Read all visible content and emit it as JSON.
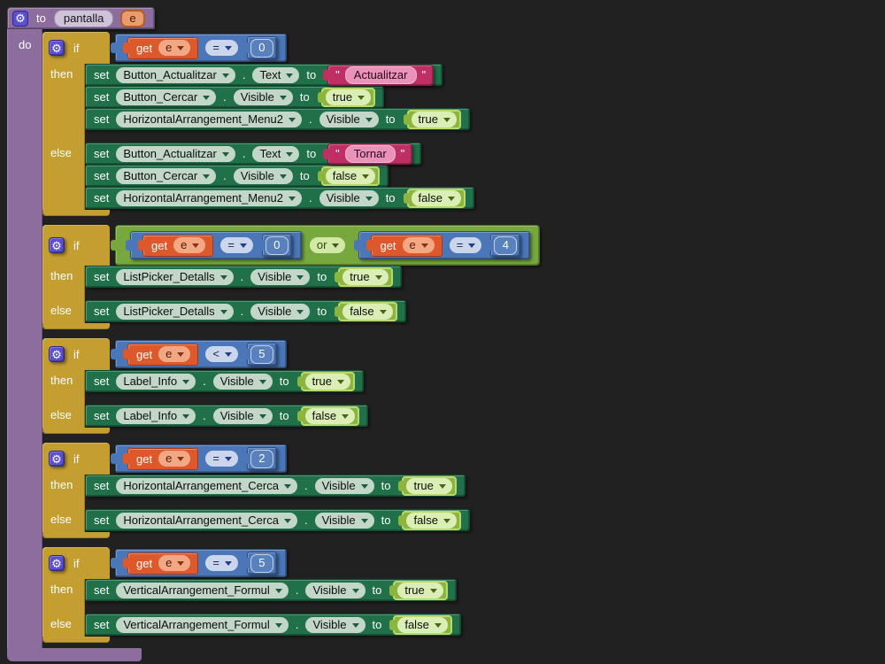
{
  "procedure": {
    "keyword_to": "to",
    "name": "pantalla",
    "param": "e",
    "do_label": "do"
  },
  "keywords": {
    "if": "if",
    "then": "then",
    "else": "else",
    "set": "set",
    "to": "to",
    "get": "get",
    "or": "or",
    "dot": ".",
    "quote": "\""
  },
  "icons": {
    "gear_glyph": "⚙"
  },
  "colors": {
    "workspace_background": "#212121",
    "procedure_purple": "#8d6d9e",
    "control_yellow": "#c49e31",
    "component_set_green": "#20714a",
    "logic_green": "#8cb53f",
    "math_blue": "#4b77b9",
    "variable_orange": "#dd592c",
    "text_crimson": "#bf2f63",
    "gear_button_blue": "#5a4fcf"
  },
  "if_blocks": [
    {
      "condition": {
        "type": "compare",
        "var": "e",
        "op": "=",
        "value": "0"
      },
      "then": [
        {
          "component": "Button_Actualitzar",
          "property": "Text",
          "value_type": "string",
          "value": "Actualitzar"
        },
        {
          "component": "Button_Cercar",
          "property": "Visible",
          "value_type": "bool",
          "value": "true"
        },
        {
          "component": "HorizontalArrangement_Menu2",
          "property": "Visible",
          "value_type": "bool",
          "value": "true"
        }
      ],
      "else": [
        {
          "component": "Button_Actualitzar",
          "property": "Text",
          "value_type": "string",
          "value": "Tornar"
        },
        {
          "component": "Button_Cercar",
          "property": "Visible",
          "value_type": "bool",
          "value": "false"
        },
        {
          "component": "HorizontalArrangement_Menu2",
          "property": "Visible",
          "value_type": "bool",
          "value": "false"
        }
      ]
    },
    {
      "condition": {
        "type": "or",
        "left": {
          "type": "compare",
          "var": "e",
          "op": "=",
          "value": "0"
        },
        "right": {
          "type": "compare",
          "var": "e",
          "op": "=",
          "value": "4"
        }
      },
      "then": [
        {
          "component": "ListPicker_Detalls",
          "property": "Visible",
          "value_type": "bool",
          "value": "true"
        }
      ],
      "else": [
        {
          "component": "ListPicker_Detalls",
          "property": "Visible",
          "value_type": "bool",
          "value": "false"
        }
      ]
    },
    {
      "condition": {
        "type": "compare",
        "var": "e",
        "op": "<",
        "value": "5"
      },
      "then": [
        {
          "component": "Label_Info",
          "property": "Visible",
          "value_type": "bool",
          "value": "true"
        }
      ],
      "else": [
        {
          "component": "Label_Info",
          "property": "Visible",
          "value_type": "bool",
          "value": "false"
        }
      ]
    },
    {
      "condition": {
        "type": "compare",
        "var": "e",
        "op": "=",
        "value": "2"
      },
      "then": [
        {
          "component": "HorizontalArrangement_Cerca",
          "property": "Visible",
          "value_type": "bool",
          "value": "true"
        }
      ],
      "else": [
        {
          "component": "HorizontalArrangement_Cerca",
          "property": "Visible",
          "value_type": "bool",
          "value": "false"
        }
      ]
    },
    {
      "condition": {
        "type": "compare",
        "var": "e",
        "op": "=",
        "value": "5"
      },
      "then": [
        {
          "component": "VerticalArrangement_Formul",
          "property": "Visible",
          "value_type": "bool",
          "value": "true"
        }
      ],
      "else": [
        {
          "component": "VerticalArrangement_Formul",
          "property": "Visible",
          "value_type": "bool",
          "value": "false"
        }
      ]
    }
  ]
}
